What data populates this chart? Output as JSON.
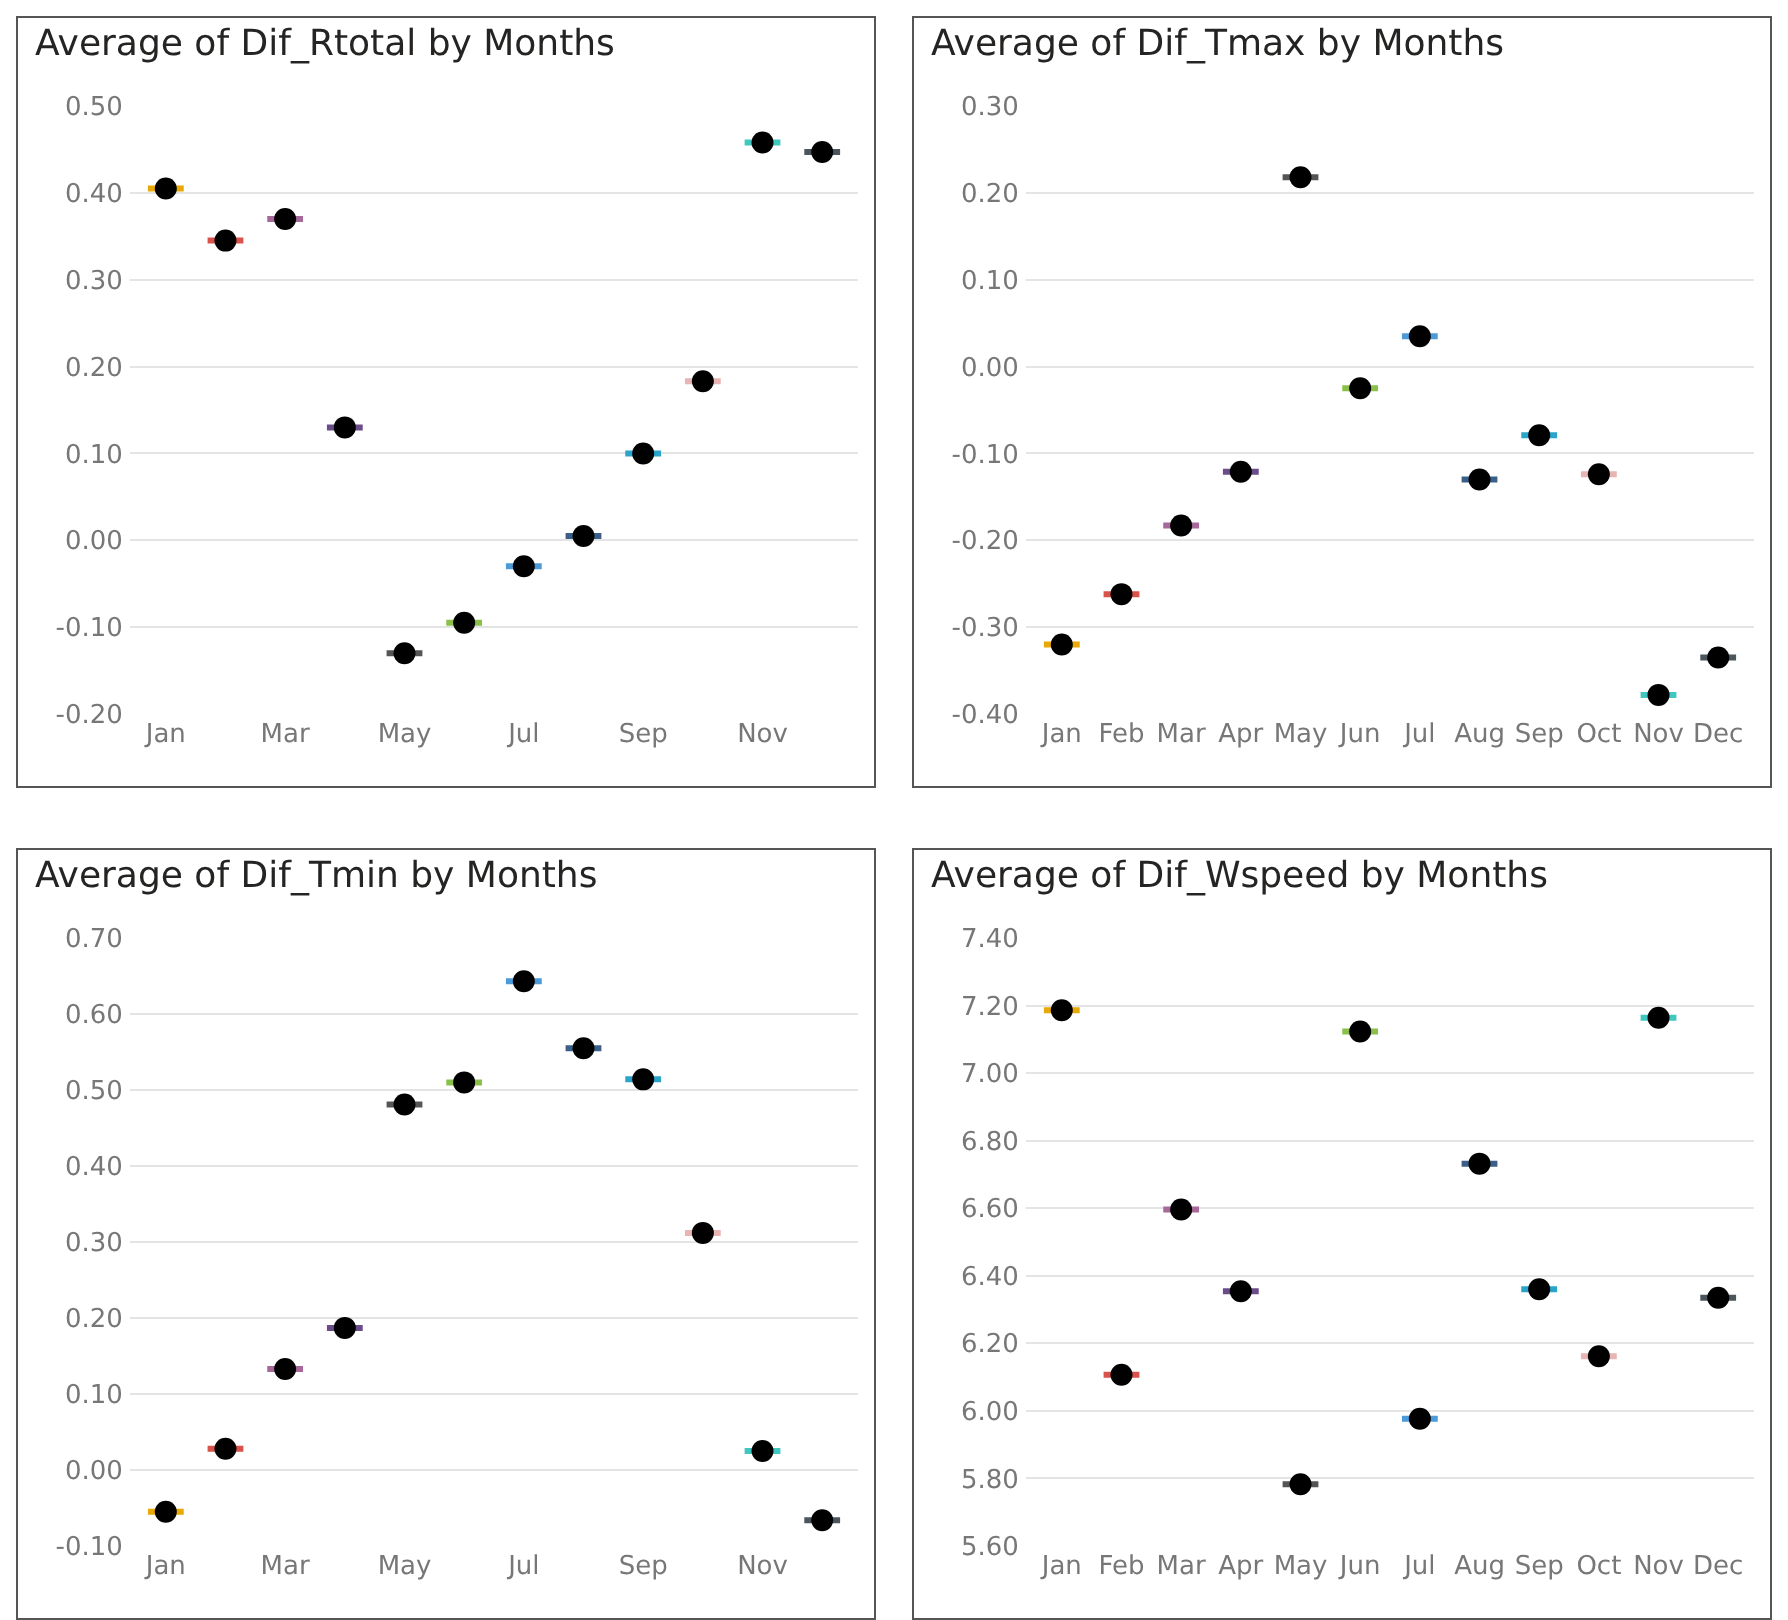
{
  "chart_data": [
    {
      "type": "box",
      "title": "Average of Dif_Rtotal by Months",
      "categories": [
        "Jan",
        null,
        "Mar",
        null,
        "May",
        null,
        "Jul",
        null,
        "Sep",
        null,
        "Nov",
        null
      ],
      "ylim": [
        -0.2,
        0.5
      ],
      "yticks": [
        {
          "value": -0.2,
          "label": "-0.20"
        },
        {
          "value": -0.1,
          "label": "-0.10"
        },
        {
          "value": 0,
          "label": "0.00"
        },
        {
          "value": 0.1,
          "label": "0.10"
        },
        {
          "value": 0.2,
          "label": "0.20"
        },
        {
          "value": 0.3,
          "label": "0.30"
        },
        {
          "value": 0.4,
          "label": "0.40"
        },
        {
          "value": 0.5,
          "label": "0.50"
        }
      ],
      "grid": "y",
      "colors": [
        "#e8a805",
        "#d9534a",
        "#a66999",
        "#6b4c8a",
        "#555555",
        "#8ac04a",
        "#4d9ad8",
        "#3b5f86",
        "#2aa4c8",
        "#e8b4b4",
        "#40c8c0",
        "#4a555c"
      ],
      "boxes": [
        {
          "low": 0.405,
          "q1": 0.405,
          "median": 0.405,
          "q3": 0.405,
          "high": 0.405,
          "mean": 0.405
        },
        {
          "low": 0.345,
          "q1": 0.345,
          "median": 0.345,
          "q3": 0.345,
          "high": 0.345,
          "mean": 0.345
        },
        {
          "low": 0.37,
          "q1": 0.37,
          "median": 0.37,
          "q3": 0.37,
          "high": 0.37,
          "mean": 0.37
        },
        {
          "low": 0.13,
          "q1": 0.13,
          "median": 0.13,
          "q3": 0.13,
          "high": 0.13,
          "mean": 0.13
        },
        {
          "low": -0.13,
          "q1": -0.13,
          "median": -0.13,
          "q3": -0.13,
          "high": -0.13,
          "mean": -0.13
        },
        {
          "low": -0.095,
          "q1": -0.095,
          "median": -0.095,
          "q3": -0.095,
          "high": -0.095,
          "mean": -0.095
        },
        {
          "low": -0.03,
          "q1": -0.03,
          "median": -0.03,
          "q3": -0.03,
          "high": -0.03,
          "mean": -0.03
        },
        {
          "low": 0.005,
          "q1": 0.005,
          "median": 0.005,
          "q3": 0.005,
          "high": 0.005,
          "mean": 0.005
        },
        {
          "low": 0.1,
          "q1": 0.1,
          "median": 0.1,
          "q3": 0.1,
          "high": 0.1,
          "mean": 0.1
        },
        {
          "low": 0.183,
          "q1": 0.183,
          "median": 0.183,
          "q3": 0.183,
          "high": 0.183,
          "mean": 0.183
        },
        {
          "low": 0.458,
          "q1": 0.458,
          "median": 0.458,
          "q3": 0.458,
          "high": 0.458,
          "mean": 0.458
        },
        {
          "low": 0.447,
          "q1": 0.447,
          "median": 0.447,
          "q3": 0.447,
          "high": 0.447,
          "mean": 0.447
        }
      ]
    },
    {
      "type": "box",
      "title": "Average of Dif_Tmax by Months",
      "categories": [
        "Jan",
        "Feb",
        "Mar",
        "Apr",
        "May",
        "Jun",
        "Jul",
        "Aug",
        "Sep",
        "Oct",
        "Nov",
        "Dec"
      ],
      "ylim": [
        -0.4,
        0.3
      ],
      "yticks": [
        {
          "value": -0.4,
          "label": "-0.40"
        },
        {
          "value": -0.3,
          "label": "-0.30"
        },
        {
          "value": -0.2,
          "label": "-0.20"
        },
        {
          "value": -0.1,
          "label": "-0.10"
        },
        {
          "value": 0,
          "label": "0.00"
        },
        {
          "value": 0.1,
          "label": "0.10"
        },
        {
          "value": 0.2,
          "label": "0.20"
        },
        {
          "value": 0.3,
          "label": "0.30"
        }
      ],
      "grid": "y",
      "colors": [
        "#e8a805",
        "#d9534a",
        "#a66999",
        "#6b4c8a",
        "#555555",
        "#8ac04a",
        "#4d9ad8",
        "#3b5f86",
        "#2aa4c8",
        "#e8b4b4",
        "#40c8c0",
        "#4a555c"
      ],
      "boxes": [
        {
          "low": -0.32,
          "q1": -0.32,
          "median": -0.32,
          "q3": -0.32,
          "high": -0.32,
          "mean": -0.32
        },
        {
          "low": -0.262,
          "q1": -0.262,
          "median": -0.262,
          "q3": -0.262,
          "high": -0.262,
          "mean": -0.262
        },
        {
          "low": -0.183,
          "q1": -0.183,
          "median": -0.183,
          "q3": -0.183,
          "high": -0.183,
          "mean": -0.183
        },
        {
          "low": -0.121,
          "q1": -0.121,
          "median": -0.121,
          "q3": -0.121,
          "high": -0.121,
          "mean": -0.121
        },
        {
          "low": 0.218,
          "q1": 0.218,
          "median": 0.218,
          "q3": 0.218,
          "high": 0.218,
          "mean": 0.218
        },
        {
          "low": -0.025,
          "q1": -0.025,
          "median": -0.025,
          "q3": -0.025,
          "high": -0.025,
          "mean": -0.025
        },
        {
          "low": 0.035,
          "q1": 0.035,
          "median": 0.035,
          "q3": 0.035,
          "high": 0.035,
          "mean": 0.035
        },
        {
          "low": -0.13,
          "q1": -0.13,
          "median": -0.13,
          "q3": -0.13,
          "high": -0.13,
          "mean": -0.13
        },
        {
          "low": -0.079,
          "q1": -0.079,
          "median": -0.079,
          "q3": -0.079,
          "high": -0.079,
          "mean": -0.079
        },
        {
          "low": -0.124,
          "q1": -0.124,
          "median": -0.124,
          "q3": -0.124,
          "high": -0.124,
          "mean": -0.124
        },
        {
          "low": -0.378,
          "q1": -0.378,
          "median": -0.378,
          "q3": -0.378,
          "high": -0.378,
          "mean": -0.378
        },
        {
          "low": -0.335,
          "q1": -0.335,
          "median": -0.335,
          "q3": -0.335,
          "high": -0.335,
          "mean": -0.335
        }
      ]
    },
    {
      "type": "box",
      "title": "Average of Dif_Tmin by Months",
      "categories": [
        "Jan",
        null,
        "Mar",
        null,
        "May",
        null,
        "Jul",
        null,
        "Sep",
        null,
        "Nov",
        null
      ],
      "ylim": [
        -0.1,
        0.7
      ],
      "yticks": [
        {
          "value": -0.1,
          "label": "-0.10"
        },
        {
          "value": 0,
          "label": "0.00"
        },
        {
          "value": 0.1,
          "label": "0.10"
        },
        {
          "value": 0.2,
          "label": "0.20"
        },
        {
          "value": 0.3,
          "label": "0.30"
        },
        {
          "value": 0.4,
          "label": "0.40"
        },
        {
          "value": 0.5,
          "label": "0.50"
        },
        {
          "value": 0.6,
          "label": "0.60"
        },
        {
          "value": 0.7,
          "label": "0.70"
        }
      ],
      "grid": "y",
      "colors": [
        "#e8a805",
        "#d9534a",
        "#a66999",
        "#6b4c8a",
        "#555555",
        "#8ac04a",
        "#4d9ad8",
        "#3b5f86",
        "#2aa4c8",
        "#e8b4b4",
        "#40c8c0",
        "#4a555c"
      ],
      "boxes": [
        {
          "low": -0.055,
          "q1": -0.055,
          "median": -0.055,
          "q3": -0.055,
          "high": -0.055,
          "mean": -0.055
        },
        {
          "low": 0.028,
          "q1": 0.028,
          "median": 0.028,
          "q3": 0.028,
          "high": 0.028,
          "mean": 0.028
        },
        {
          "low": 0.133,
          "q1": 0.133,
          "median": 0.133,
          "q3": 0.133,
          "high": 0.133,
          "mean": 0.133
        },
        {
          "low": 0.187,
          "q1": 0.187,
          "median": 0.187,
          "q3": 0.187,
          "high": 0.187,
          "mean": 0.187
        },
        {
          "low": 0.481,
          "q1": 0.481,
          "median": 0.481,
          "q3": 0.481,
          "high": 0.481,
          "mean": 0.481
        },
        {
          "low": 0.51,
          "q1": 0.51,
          "median": 0.51,
          "q3": 0.51,
          "high": 0.51,
          "mean": 0.51
        },
        {
          "low": 0.643,
          "q1": 0.643,
          "median": 0.643,
          "q3": 0.643,
          "high": 0.643,
          "mean": 0.643
        },
        {
          "low": 0.555,
          "q1": 0.555,
          "median": 0.555,
          "q3": 0.555,
          "high": 0.555,
          "mean": 0.555
        },
        {
          "low": 0.514,
          "q1": 0.514,
          "median": 0.514,
          "q3": 0.514,
          "high": 0.514,
          "mean": 0.514
        },
        {
          "low": 0.312,
          "q1": 0.312,
          "median": 0.312,
          "q3": 0.312,
          "high": 0.312,
          "mean": 0.312
        },
        {
          "low": 0.025,
          "q1": 0.025,
          "median": 0.025,
          "q3": 0.025,
          "high": 0.025,
          "mean": 0.025
        },
        {
          "low": -0.066,
          "q1": -0.066,
          "median": -0.066,
          "q3": -0.066,
          "high": -0.066,
          "mean": -0.066
        }
      ]
    },
    {
      "type": "box",
      "title": "Average of Dif_Wspeed by Months",
      "categories": [
        "Jan",
        "Feb",
        "Mar",
        "Apr",
        "May",
        "Jun",
        "Jul",
        "Aug",
        "Sep",
        "Oct",
        "Nov",
        "Dec"
      ],
      "ylim": [
        5.6,
        7.4
      ],
      "yticks": [
        {
          "value": 5.6,
          "label": "5.60"
        },
        {
          "value": 5.8,
          "label": "5.80"
        },
        {
          "value": 6,
          "label": "6.00"
        },
        {
          "value": 6.2,
          "label": "6.20"
        },
        {
          "value": 6.4,
          "label": "6.40"
        },
        {
          "value": 6.6,
          "label": "6.60"
        },
        {
          "value": 6.8,
          "label": "6.80"
        },
        {
          "value": 7,
          "label": "7.00"
        },
        {
          "value": 7.2,
          "label": "7.20"
        },
        {
          "value": 7.4,
          "label": "7.40"
        }
      ],
      "grid": "y",
      "colors": [
        "#e8a805",
        "#d9534a",
        "#a66999",
        "#6b4c8a",
        "#555555",
        "#8ac04a",
        "#4d9ad8",
        "#3b5f86",
        "#2aa4c8",
        "#e8b4b4",
        "#40c8c0",
        "#4a555c"
      ],
      "boxes": [
        {
          "low": 7.186,
          "q1": 7.186,
          "median": 7.186,
          "q3": 7.186,
          "high": 7.186,
          "mean": 7.186
        },
        {
          "low": 6.107,
          "q1": 6.107,
          "median": 6.107,
          "q3": 6.107,
          "high": 6.107,
          "mean": 6.107
        },
        {
          "low": 6.596,
          "q1": 6.596,
          "median": 6.596,
          "q3": 6.596,
          "high": 6.596,
          "mean": 6.596
        },
        {
          "low": 6.354,
          "q1": 6.354,
          "median": 6.354,
          "q3": 6.354,
          "high": 6.354,
          "mean": 6.354
        },
        {
          "low": 5.783,
          "q1": 5.783,
          "median": 5.783,
          "q3": 5.783,
          "high": 5.783,
          "mean": 5.783
        },
        {
          "low": 7.123,
          "q1": 7.123,
          "median": 7.123,
          "q3": 7.123,
          "high": 7.123,
          "mean": 7.123
        },
        {
          "low": 5.977,
          "q1": 5.977,
          "median": 5.977,
          "q3": 5.977,
          "high": 5.977,
          "mean": 5.977
        },
        {
          "low": 6.732,
          "q1": 6.732,
          "median": 6.732,
          "q3": 6.732,
          "high": 6.732,
          "mean": 6.732
        },
        {
          "low": 6.36,
          "q1": 6.36,
          "median": 6.36,
          "q3": 6.36,
          "high": 6.36,
          "mean": 6.36
        },
        {
          "low": 6.162,
          "q1": 6.162,
          "median": 6.162,
          "q3": 6.162,
          "high": 6.162,
          "mean": 6.162
        },
        {
          "low": 7.164,
          "q1": 7.164,
          "median": 7.164,
          "q3": 7.164,
          "high": 7.164,
          "mean": 7.164
        },
        {
          "low": 6.335,
          "q1": 6.335,
          "median": 6.335,
          "q3": 6.335,
          "high": 6.335,
          "mean": 6.335
        }
      ]
    }
  ]
}
